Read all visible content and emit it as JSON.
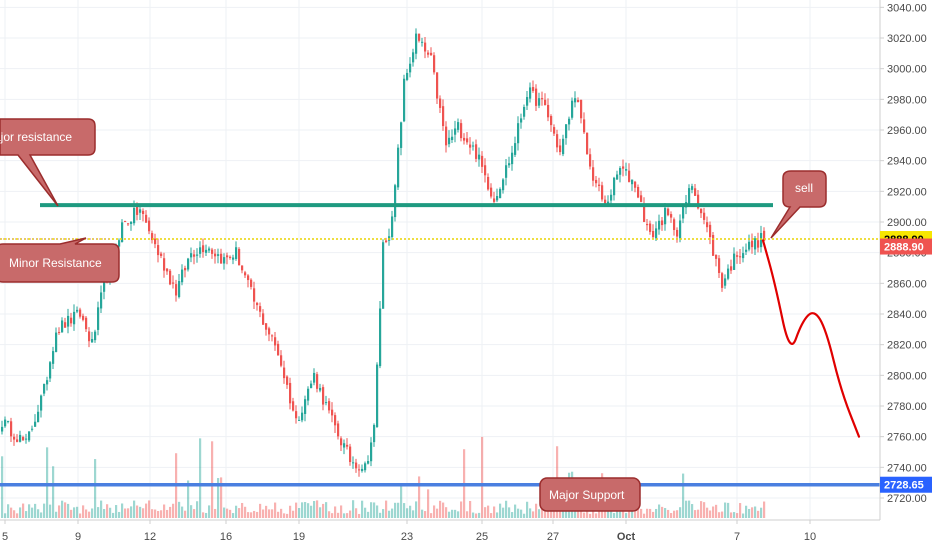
{
  "chart_data": {
    "type": "candlestick",
    "y_axis": {
      "ylim": [
        2705,
        3045
      ],
      "ticks": [
        2720,
        2740,
        2760,
        2780,
        2800,
        2820,
        2840,
        2860,
        2880,
        2900,
        2920,
        2940,
        2960,
        2980,
        3000,
        3020,
        3040
      ],
      "tick_labels": [
        "2720.00",
        "2740.00",
        "2760.00",
        "2780.00",
        "2800.00",
        "2820.00",
        "2840.00",
        "2860.00",
        "2880.00",
        "2900.00",
        "2920.00",
        "2940.00",
        "2960.00",
        "2980.00",
        "3000.00",
        "3020.00",
        "3040.00"
      ]
    },
    "x_axis": {
      "tick_labels": [
        "5",
        "9",
        "12",
        "16",
        "19",
        "23",
        "25",
        "27",
        "Oct",
        "7",
        "10"
      ],
      "bold_labels": [
        "Oct"
      ]
    },
    "levels": [
      {
        "name": "current-price",
        "value": 2888.9,
        "label": "2888.90",
        "color": "#f7e600",
        "tag_bg": "#f7e600",
        "tag_color": "#000000"
      },
      {
        "name": "last-close",
        "value": 2884.0,
        "label": "2888.90",
        "tag_bg": "#ef5350",
        "tag_color": "#ffffff"
      },
      {
        "name": "support",
        "value": 2728.65,
        "label": "2728.65",
        "color": "#4a7fe0",
        "tag_bg": "#2962ff",
        "tag_color": "#ffffff"
      },
      {
        "name": "resistance-line",
        "value": 2911,
        "color": "#1e9a80"
      }
    ],
    "annotations": [
      {
        "name": "major-resistance",
        "text": "ajor resistance"
      },
      {
        "name": "minor-resistance",
        "text": "Minor Resistance"
      },
      {
        "name": "sell",
        "text": "sell"
      },
      {
        "name": "major-support",
        "text": "Major Support"
      }
    ],
    "key_prices": [
      {
        "bar": 0,
        "price": 2770
      },
      {
        "bar": 8,
        "price": 2755
      },
      {
        "bar": 14,
        "price": 2790
      },
      {
        "bar": 18,
        "price": 2830
      },
      {
        "bar": 26,
        "price": 2840
      },
      {
        "bar": 30,
        "price": 2820
      },
      {
        "bar": 34,
        "price": 2860
      },
      {
        "bar": 40,
        "price": 2898
      },
      {
        "bar": 46,
        "price": 2908
      },
      {
        "bar": 52,
        "price": 2880
      },
      {
        "bar": 58,
        "price": 2855
      },
      {
        "bar": 63,
        "price": 2880
      },
      {
        "bar": 68,
        "price": 2885
      },
      {
        "bar": 74,
        "price": 2875
      },
      {
        "bar": 78,
        "price": 2880
      },
      {
        "bar": 84,
        "price": 2848
      },
      {
        "bar": 92,
        "price": 2815
      },
      {
        "bar": 98,
        "price": 2770
      },
      {
        "bar": 104,
        "price": 2800
      },
      {
        "bar": 110,
        "price": 2770
      },
      {
        "bar": 116,
        "price": 2745
      },
      {
        "bar": 121,
        "price": 2740
      },
      {
        "bar": 124,
        "price": 2765
      },
      {
        "bar": 127,
        "price": 2885
      },
      {
        "bar": 130,
        "price": 2900
      },
      {
        "bar": 134,
        "price": 2990
      },
      {
        "bar": 138,
        "price": 3020
      },
      {
        "bar": 143,
        "price": 3005
      },
      {
        "bar": 148,
        "price": 2950
      },
      {
        "bar": 152,
        "price": 2962
      },
      {
        "bar": 158,
        "price": 2945
      },
      {
        "bar": 164,
        "price": 2915
      },
      {
        "bar": 170,
        "price": 2945
      },
      {
        "bar": 175,
        "price": 2985
      },
      {
        "bar": 181,
        "price": 2975
      },
      {
        "bar": 186,
        "price": 2945
      },
      {
        "bar": 191,
        "price": 2985
      },
      {
        "bar": 196,
        "price": 2935
      },
      {
        "bar": 201,
        "price": 2910
      },
      {
        "bar": 206,
        "price": 2935
      },
      {
        "bar": 211,
        "price": 2925
      },
      {
        "bar": 216,
        "price": 2890
      },
      {
        "bar": 221,
        "price": 2905
      },
      {
        "bar": 225,
        "price": 2895
      },
      {
        "bar": 230,
        "price": 2925
      },
      {
        "bar": 235,
        "price": 2895
      },
      {
        "bar": 240,
        "price": 2860
      },
      {
        "bar": 245,
        "price": 2880
      },
      {
        "bar": 250,
        "price": 2885
      },
      {
        "bar": 254,
        "price": 2890
      }
    ],
    "projection": [
      {
        "bar": 254,
        "price": 2888
      },
      {
        "bar": 258,
        "price": 2860
      },
      {
        "bar": 263,
        "price": 2813
      },
      {
        "bar": 267,
        "price": 2835
      },
      {
        "bar": 271,
        "price": 2843
      },
      {
        "bar": 275,
        "price": 2830
      },
      {
        "bar": 280,
        "price": 2790
      },
      {
        "bar": 286,
        "price": 2760
      }
    ]
  }
}
